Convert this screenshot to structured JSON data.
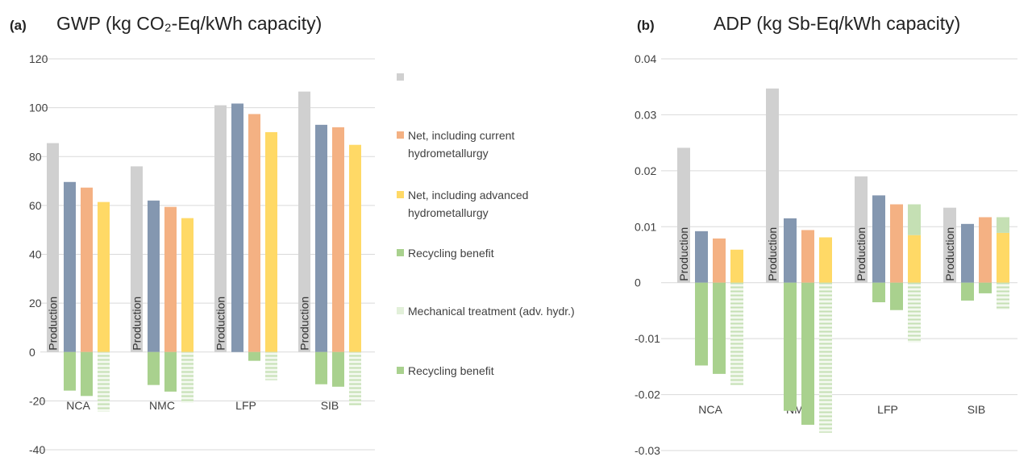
{
  "chart_data": [
    {
      "type": "bar",
      "panel_label": "(a)",
      "title": "GWP (kg CO₂-Eq/kWh capacity)",
      "categories": [
        "NCA",
        "NMC",
        "LFP",
        "SIB"
      ],
      "ylim": [
        -40,
        120
      ],
      "yticks": [
        -40,
        -20,
        0,
        20,
        40,
        60,
        80,
        100,
        120
      ],
      "grid": true,
      "legend": "right",
      "series": [
        {
          "color": "#d0d0d0",
          "values": [
            85.5,
            76,
            101,
            106.6
          ],
          "bar_label": "Production",
          "in_legend": true
        },
        {
          "color": "#8497b0",
          "values": [
            69.6,
            62,
            101.7,
            93
          ],
          "in_legend": false
        },
        {
          "name": "Net, including current hydrometallurgy",
          "color": "#f4b183",
          "values": [
            67.3,
            59.4,
            97.4,
            92
          ],
          "in_legend": true
        },
        {
          "name": "Net, including advanced hydrometallurgy",
          "color": "#ffd966",
          "values": [
            61.4,
            54.8,
            90,
            84.8
          ],
          "in_legend": true
        },
        {
          "name": "Recycling benefit",
          "color": "#a9d18e",
          "values": [
            -15.8,
            -13.5,
            null,
            -13.2
          ],
          "with": 1,
          "in_legend": true
        },
        {
          "name": "Mechanical treatment (adv. hydr.)",
          "color": "#e2f0d9",
          "values": [
            -24.4,
            -20.8,
            -11.5,
            -21.8
          ],
          "with": 3,
          "hatch": true,
          "in_legend": true
        },
        {
          "name": "Recycling benefit",
          "color": "#a9d18e",
          "values": [
            -18,
            -16.2,
            -3.6,
            -14.2
          ],
          "with": 2,
          "in_legend": true
        }
      ]
    },
    {
      "type": "bar",
      "panel_label": "(b)",
      "title": "ADP (kg Sb-Eq/kWh capacity)",
      "categories": [
        "NCA",
        "NMC",
        "LFP",
        "SIB"
      ],
      "ylim": [
        -0.03,
        0.04
      ],
      "yticks": [
        -0.03,
        -0.02,
        -0.01,
        0,
        0.01,
        0.02,
        0.03,
        0.04
      ],
      "grid": true,
      "series": [
        {
          "color": "#d0d0d0",
          "values": [
            0.0241,
            0.0347,
            0.019,
            0.0134
          ],
          "bar_label": "Production"
        },
        {
          "color": "#8497b0",
          "values": [
            0.0092,
            0.0115,
            0.0156,
            0.0105
          ]
        },
        {
          "color": "#f4b183",
          "values": [
            0.0079,
            0.0094,
            0.014,
            0.0117
          ]
        },
        {
          "color": "#ffd966",
          "values": [
            0.0059,
            0.0081,
            0.0085,
            0.0089
          ]
        },
        {
          "color": "#a9d18e",
          "values": [
            -0.0148,
            -0.0229,
            -0.0035,
            -0.0032
          ],
          "with": 1
        },
        {
          "color": "#e2f0d9",
          "values": [
            -0.0183,
            -0.0268,
            -0.0107,
            -0.0048
          ],
          "with": 3,
          "hatch": true
        },
        {
          "color": "#a9d18e",
          "values": [
            -0.0163,
            -0.0254,
            -0.0049,
            -0.0019
          ],
          "with": 2
        },
        {
          "color": "#c5e0b4",
          "values": [
            null,
            null,
            0.0055,
            0.0028
          ],
          "with": 3,
          "stacked": true
        }
      ]
    }
  ]
}
